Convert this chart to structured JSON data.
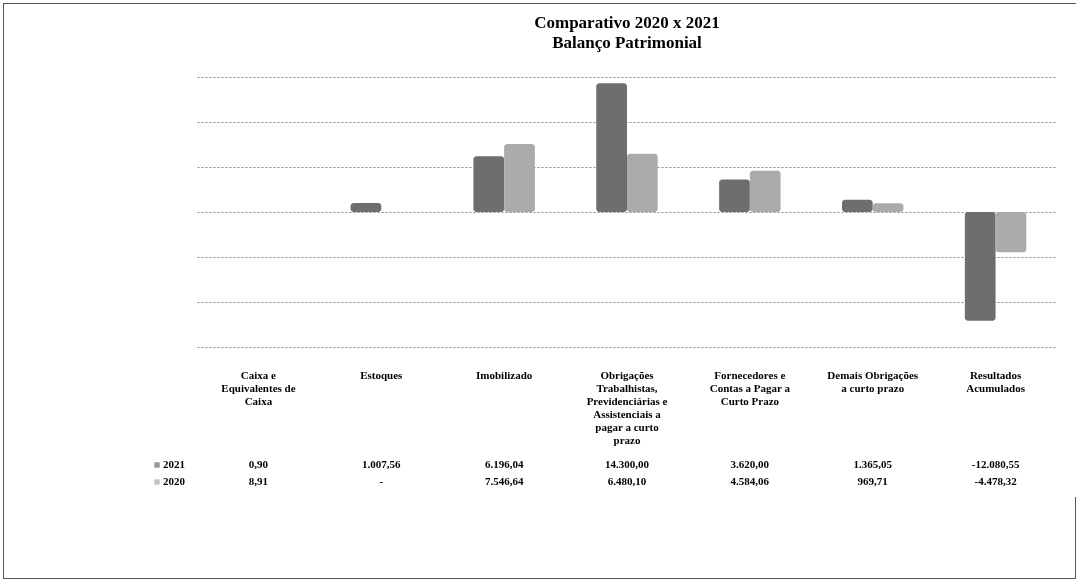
{
  "chart_data": {
    "type": "bar",
    "title": "Comparativo 2020 x 2021",
    "subtitle": "Balanço Patrimonial",
    "categories": [
      "Caixa e Equivalentes de Caixa",
      "Estoques",
      "Imobilizado",
      "Obrigações Trabalhistas, Previdenciárias e Assistenciais a pagar a curto prazo",
      "Fornecedores e Contas a Pagar a Curto Prazo",
      "Demais Obrigações a curto prazo",
      "Resultados Acumulados"
    ],
    "series": [
      {
        "name": "2021",
        "color": "#6e6e6e",
        "values": [
          0.9,
          1007.56,
          6196.04,
          14300.0,
          3620.0,
          1365.05,
          -12080.55
        ],
        "value_labels": [
          "0,90",
          "1.007,56",
          "6.196,04",
          "14.300,00",
          "3.620,00",
          "1.365,05",
          "-12.080,55"
        ]
      },
      {
        "name": "2020",
        "color": "#ababab",
        "values": [
          8.91,
          0,
          7546.64,
          6480.1,
          4584.06,
          969.71,
          -4478.32
        ],
        "value_labels": [
          "8,91",
          "-",
          "7.546,64",
          "6.480,10",
          "4.584,06",
          "969,71",
          "-4.478,32"
        ]
      }
    ],
    "ylim": [
      -15000,
      15000
    ],
    "yticks": [
      {
        "value": -15000,
        "label": null
      },
      {
        "value": -10000,
        "label": null
      },
      {
        "value": -5000,
        "label": null
      },
      {
        "value": 0,
        "label": null
      },
      {
        "value": 5000,
        "label": null
      },
      {
        "value": 10000,
        "label": null
      },
      {
        "value": 15000,
        "label": null
      }
    ],
    "grid": "y",
    "tick_labels": "x",
    "legend": "bottom left"
  }
}
